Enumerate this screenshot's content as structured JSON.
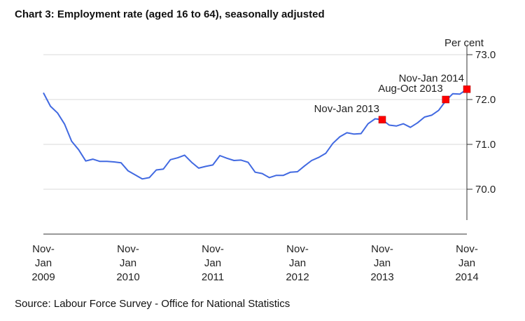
{
  "chart_data": {
    "type": "line",
    "title": "Chart 3: Employment rate (aged 16 to 64), seasonally adjusted",
    "ylabel": "Per cent",
    "xlabel": "",
    "ylim": [
      69.0,
      73.0
    ],
    "y_ticks": [
      "70.0",
      "71.0",
      "72.0",
      "73.0"
    ],
    "y_tick_values": [
      70.0,
      71.0,
      72.0,
      73.0
    ],
    "grid": true,
    "x_ticks": [
      {
        "index": 0,
        "lines": [
          "Nov-",
          "Jan",
          "2009"
        ]
      },
      {
        "index": 12,
        "lines": [
          "Nov-",
          "Jan",
          "2010"
        ]
      },
      {
        "index": 24,
        "lines": [
          "Nov-",
          "Jan",
          "2011"
        ]
      },
      {
        "index": 36,
        "lines": [
          "Nov-",
          "Jan",
          "2012"
        ]
      },
      {
        "index": 48,
        "lines": [
          "Nov-",
          "Jan",
          "2013"
        ]
      },
      {
        "index": 60,
        "lines": [
          "Nov-",
          "Jan",
          "2014"
        ]
      }
    ],
    "series": [
      {
        "name": "Employment rate",
        "color": "#4169e1",
        "values": [
          72.15,
          71.85,
          71.7,
          71.45,
          71.07,
          70.88,
          70.63,
          70.67,
          70.62,
          70.62,
          70.61,
          70.59,
          70.41,
          70.32,
          70.23,
          70.26,
          70.43,
          70.45,
          70.66,
          70.7,
          70.76,
          70.6,
          70.47,
          70.51,
          70.54,
          70.75,
          70.69,
          70.64,
          70.65,
          70.6,
          70.38,
          70.35,
          70.26,
          70.31,
          70.31,
          70.38,
          70.39,
          70.52,
          70.64,
          70.71,
          70.8,
          71.02,
          71.17,
          71.26,
          71.23,
          71.24,
          71.46,
          71.57,
          71.55,
          71.43,
          71.41,
          71.46,
          71.38,
          71.48,
          71.61,
          71.65,
          71.76,
          71.97,
          72.13,
          72.12,
          72.23
        ]
      }
    ],
    "highlights": [
      {
        "index": 48,
        "value": 71.55,
        "label": "Nov-Jan 2013",
        "color": "#ff0000"
      },
      {
        "index": 57,
        "value": 72.0,
        "label": "Aug-Oct 2013",
        "color": "#ff0000"
      },
      {
        "index": 60,
        "value": 72.23,
        "label": "Nov-Jan 2014",
        "color": "#ff0000"
      }
    ]
  },
  "source": "Source: Labour Force Survey - Office for National Statistics"
}
